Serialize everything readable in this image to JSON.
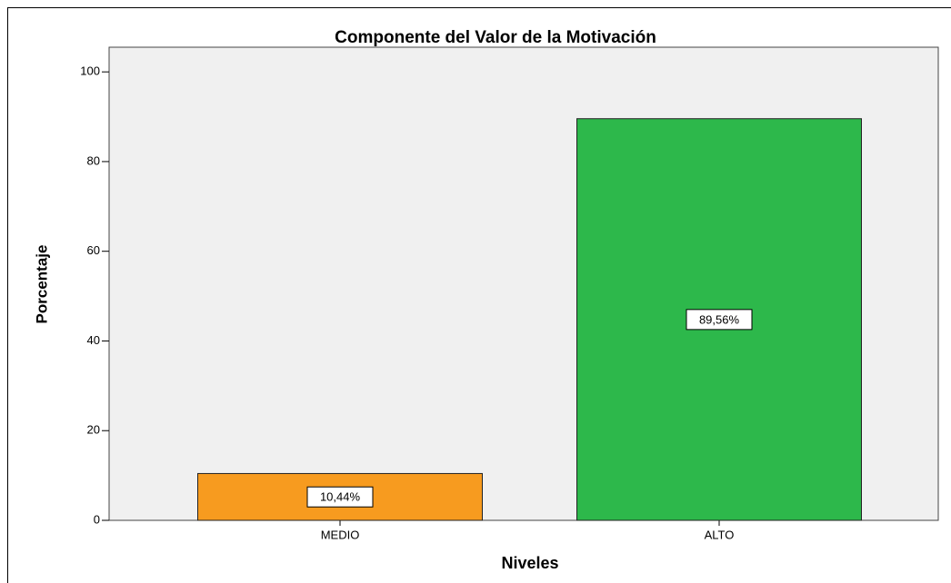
{
  "chart_data": {
    "type": "bar",
    "title": "Componente del Valor de la Motivación",
    "x_label": "Niveles",
    "y_label": "Porcentaje",
    "categories": [
      "MEDIO",
      "ALTO"
    ],
    "values": [
      10.44,
      89.56
    ],
    "value_labels": [
      "10,44%",
      "89,56%"
    ],
    "colors": [
      "#f79b1f",
      "#2db84b"
    ],
    "ylim": [
      0,
      105.5
    ],
    "yticks": [
      0,
      20,
      40,
      60,
      80,
      100
    ],
    "grid": false
  }
}
